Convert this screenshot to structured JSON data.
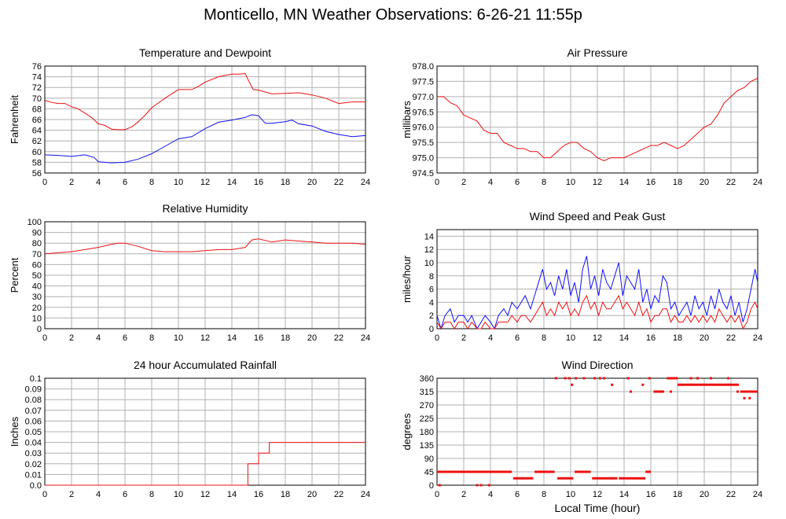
{
  "title": "Monticello, MN Weather Observations: 6-26-21 11:55p",
  "shared_xlabel": "Local Time (hour)",
  "colors": {
    "red": "#ee1111",
    "blue": "#1111ee",
    "grid": "#b0b0b0"
  },
  "chart_data": [
    {
      "type": "line",
      "title": "Temperature and Dewpoint",
      "ylabel": "Fahrenheit",
      "xlim": [
        0,
        24
      ],
      "ylim": [
        56,
        76
      ],
      "xticks": [
        0,
        2,
        4,
        6,
        8,
        10,
        12,
        14,
        16,
        18,
        20,
        22,
        24
      ],
      "yticks": [
        "56",
        "58",
        "60",
        "62",
        "64",
        "66",
        "68",
        "70",
        "72",
        "74",
        "76"
      ],
      "grid": true,
      "series": [
        {
          "color": "#ee1111",
          "x": [
            0,
            0.5,
            1,
            1.5,
            2,
            2.5,
            3,
            3.5,
            4,
            4.5,
            5,
            5.5,
            6,
            6.5,
            7,
            7.5,
            8,
            9,
            10,
            11,
            11.5,
            12,
            13,
            14,
            14.5,
            15,
            15.3,
            15.6,
            16,
            17,
            18,
            19,
            20,
            21,
            22,
            23,
            24
          ],
          "y": [
            69.6,
            69.2,
            69.0,
            69.0,
            68.4,
            68.0,
            67.2,
            66.4,
            65.2,
            64.9,
            64.2,
            64.1,
            64.1,
            64.6,
            65.6,
            66.8,
            68.2,
            70.0,
            71.6,
            71.6,
            72.2,
            73.0,
            74.0,
            74.5,
            74.5,
            74.6,
            73.0,
            71.6,
            71.5,
            70.8,
            70.9,
            71.0,
            70.6,
            70.0,
            69.0,
            69.3,
            69.3
          ]
        },
        {
          "color": "#1111ee",
          "x": [
            0,
            1,
            2,
            3,
            3.7,
            4,
            4.5,
            5,
            6,
            7,
            8,
            9,
            10,
            11,
            12,
            13,
            14,
            15,
            15.5,
            16,
            16.5,
            17,
            18,
            18.5,
            19,
            20,
            21,
            22,
            23,
            24
          ],
          "y": [
            59.4,
            59.3,
            59.1,
            59.4,
            58.9,
            58.1,
            58.0,
            57.9,
            58.0,
            58.6,
            59.6,
            61.0,
            62.4,
            62.8,
            64.3,
            65.5,
            65.9,
            66.4,
            66.9,
            66.7,
            65.3,
            65.3,
            65.6,
            65.9,
            65.2,
            64.8,
            63.8,
            63.2,
            62.8,
            63.0
          ]
        }
      ]
    },
    {
      "type": "line",
      "title": "Air Pressure",
      "ylabel": "millibars",
      "xlim": [
        0,
        24
      ],
      "ylim": [
        974.5,
        978.0
      ],
      "xticks": [
        0,
        2,
        4,
        6,
        8,
        10,
        12,
        14,
        16,
        18,
        20,
        22,
        24
      ],
      "yticks": [
        "974.5",
        "975.0",
        "975.5",
        "976.0",
        "976.5",
        "977.0",
        "977.5",
        "978.0"
      ],
      "grid": true,
      "series": [
        {
          "color": "#ee1111",
          "x": [
            0,
            0.5,
            1,
            1.5,
            2,
            2.5,
            3,
            3.5,
            4,
            4.5,
            5,
            5.5,
            6,
            6.5,
            7,
            7.5,
            8,
            8.5,
            9,
            9.5,
            10,
            10.5,
            11,
            11.5,
            12,
            12.5,
            13,
            13.5,
            14,
            14.5,
            15,
            15.5,
            16,
            16.5,
            17,
            17.5,
            18,
            18.5,
            19,
            19.5,
            20,
            20.5,
            21,
            21.5,
            22,
            22.5,
            23,
            23.5,
            24
          ],
          "y": [
            977.0,
            977.0,
            976.8,
            976.7,
            976.4,
            976.3,
            976.2,
            975.9,
            975.8,
            975.8,
            975.5,
            975.4,
            975.3,
            975.3,
            975.2,
            975.2,
            975.0,
            975.0,
            975.2,
            975.4,
            975.5,
            975.5,
            975.3,
            975.2,
            975.0,
            974.9,
            975.0,
            975.0,
            975.0,
            975.1,
            975.2,
            975.3,
            975.4,
            975.4,
            975.5,
            975.4,
            975.3,
            975.4,
            975.6,
            975.8,
            976.0,
            976.1,
            976.4,
            976.8,
            977.0,
            977.2,
            977.3,
            977.5,
            977.6
          ]
        }
      ]
    },
    {
      "type": "line",
      "title": "Relative Humidity",
      "ylabel": "Percent",
      "xlim": [
        0,
        24
      ],
      "ylim": [
        0,
        100
      ],
      "xticks": [
        0,
        2,
        4,
        6,
        8,
        10,
        12,
        14,
        16,
        18,
        20,
        22,
        24
      ],
      "yticks": [
        "0",
        "10",
        "20",
        "30",
        "40",
        "50",
        "60",
        "70",
        "80",
        "90",
        "100"
      ],
      "grid": true,
      "series": [
        {
          "color": "#ee1111",
          "x": [
            0,
            1,
            2,
            3,
            4,
            5,
            5.5,
            6,
            7,
            8,
            9,
            10,
            11,
            12,
            13,
            14,
            15,
            15.5,
            16,
            17,
            18,
            19,
            20,
            21,
            22,
            23,
            24
          ],
          "y": [
            70,
            71,
            72,
            74,
            76,
            79,
            80,
            80,
            77,
            73,
            72,
            72,
            72,
            73,
            74,
            74,
            76,
            83,
            84,
            81,
            83,
            82,
            81,
            80,
            80,
            80,
            79
          ]
        }
      ]
    },
    {
      "type": "line",
      "title": "Wind Speed and Peak Gust",
      "ylabel": "miles/hour",
      "xlim": [
        0,
        24
      ],
      "ylim": [
        0,
        15
      ],
      "xticks": [
        0,
        2,
        4,
        6,
        8,
        10,
        12,
        14,
        16,
        18,
        20,
        22,
        24
      ],
      "yticks": [
        "0",
        "2",
        "4",
        "6",
        "8",
        "10",
        "12",
        "14"
      ],
      "grid": true,
      "series": [
        {
          "color": "#1111ee",
          "x": [
            0,
            0.3,
            0.6,
            1,
            1.3,
            1.6,
            2,
            2.3,
            2.6,
            3,
            3.3,
            3.6,
            4,
            4.3,
            4.6,
            5,
            5.3,
            5.6,
            6,
            6.3,
            6.6,
            7,
            7.3,
            7.6,
            7.9,
            8.2,
            8.5,
            8.8,
            9.1,
            9.4,
            9.7,
            10,
            10.3,
            10.6,
            10.9,
            11.2,
            11.5,
            11.8,
            12.1,
            12.4,
            12.7,
            13,
            13.3,
            13.6,
            13.9,
            14.2,
            14.5,
            14.8,
            15.1,
            15.4,
            15.7,
            16,
            16.3,
            16.6,
            16.9,
            17.2,
            17.5,
            17.8,
            18.1,
            18.4,
            18.7,
            19,
            19.3,
            19.6,
            19.9,
            20.2,
            20.5,
            20.8,
            21.1,
            21.4,
            21.7,
            22,
            22.3,
            22.6,
            22.9,
            23.2,
            23.5,
            23.8,
            24
          ],
          "y": [
            2,
            0,
            2,
            3,
            1,
            2,
            2,
            1,
            2,
            0,
            1,
            2,
            1,
            0,
            2,
            3,
            2,
            4,
            3,
            4,
            5,
            3,
            5,
            7,
            9,
            6,
            7,
            5,
            8,
            6,
            9,
            5,
            7,
            4,
            9,
            11,
            6,
            8,
            5,
            9,
            7,
            6,
            8,
            10,
            5,
            8,
            7,
            6,
            9,
            4,
            6,
            3,
            5,
            4,
            8,
            7,
            3,
            4,
            2,
            3,
            4,
            2,
            5,
            3,
            4,
            2,
            5,
            3,
            6,
            4,
            3,
            5,
            2,
            4,
            1,
            3,
            6,
            9,
            7
          ]
        },
        {
          "color": "#ee1111",
          "x": [
            0,
            0.3,
            0.6,
            1,
            1.3,
            1.6,
            2,
            2.3,
            2.6,
            3,
            3.3,
            3.6,
            4,
            4.3,
            4.6,
            5,
            5.3,
            5.6,
            6,
            6.3,
            6.6,
            7,
            7.3,
            7.6,
            7.9,
            8.2,
            8.5,
            8.8,
            9.1,
            9.4,
            9.7,
            10,
            10.3,
            10.6,
            10.9,
            11.2,
            11.5,
            11.8,
            12.1,
            12.4,
            12.7,
            13,
            13.3,
            13.6,
            13.9,
            14.2,
            14.5,
            14.8,
            15.1,
            15.4,
            15.7,
            16,
            16.3,
            16.6,
            16.9,
            17.2,
            17.5,
            17.8,
            18.1,
            18.4,
            18.7,
            19,
            19.3,
            19.6,
            19.9,
            20.2,
            20.5,
            20.8,
            21.1,
            21.4,
            21.7,
            22,
            22.3,
            22.6,
            22.9,
            23.2,
            23.5,
            23.8,
            24
          ],
          "y": [
            1,
            0,
            1,
            1,
            0,
            1,
            1,
            0,
            1,
            0,
            0,
            1,
            0,
            0,
            1,
            1,
            1,
            2,
            1,
            2,
            2,
            1,
            2,
            3,
            4,
            2,
            3,
            2,
            4,
            3,
            4,
            2,
            3,
            2,
            4,
            5,
            3,
            4,
            2,
            4,
            3,
            3,
            4,
            5,
            3,
            4,
            3,
            2,
            4,
            2,
            3,
            1,
            2,
            2,
            3,
            3,
            1,
            2,
            1,
            1,
            2,
            1,
            2,
            1,
            2,
            1,
            2,
            1,
            3,
            2,
            1,
            2,
            1,
            2,
            0,
            1,
            3,
            4,
            3
          ]
        }
      ]
    },
    {
      "type": "line",
      "title": "24 hour Accumulated Rainfall",
      "ylabel": "Inches",
      "xlim": [
        0,
        24
      ],
      "ylim": [
        0,
        0.1
      ],
      "xticks": [
        0,
        2,
        4,
        6,
        8,
        10,
        12,
        14,
        16,
        18,
        20,
        22,
        24
      ],
      "yticks": [
        "0.0",
        "0.01",
        "0.02",
        "0.03",
        "0.04",
        "0.05",
        "0.06",
        "0.07",
        "0.08",
        "0.09",
        "0.1"
      ],
      "grid": true,
      "series": [
        {
          "color": "#ee1111",
          "x": [
            0,
            15.2,
            15.2,
            16.0,
            16.0,
            16.5,
            16.5,
            16.8,
            16.8,
            24
          ],
          "y": [
            0,
            0,
            0.02,
            0.02,
            0.03,
            0.03,
            0.03,
            0.03,
            0.04,
            0.04
          ]
        }
      ]
    },
    {
      "type": "scatter",
      "title": "Wind Direction",
      "ylabel": "degrees",
      "xlabel": "Local Time (hour)",
      "xlim": [
        0,
        24
      ],
      "ylim": [
        0,
        360
      ],
      "xticks": [
        0,
        2,
        4,
        6,
        8,
        10,
        12,
        14,
        16,
        18,
        20,
        22,
        24
      ],
      "yticks": [
        "0",
        "45",
        "90",
        "135",
        "180",
        "225",
        "270",
        "315",
        "360"
      ],
      "grid": true,
      "segments": [
        {
          "x0": 0,
          "x1": 5.6,
          "y": 45
        },
        {
          "x0": 5.7,
          "x1": 7.2,
          "y": 23
        },
        {
          "x0": 7.3,
          "x1": 8.8,
          "y": 45
        },
        {
          "x0": 9.0,
          "x1": 10.2,
          "y": 23
        },
        {
          "x0": 10.3,
          "x1": 11.5,
          "y": 45
        },
        {
          "x0": 11.6,
          "x1": 13.5,
          "y": 23
        },
        {
          "x0": 13.6,
          "x1": 15.6,
          "y": 23
        },
        {
          "x0": 15.6,
          "x1": 16.0,
          "y": 45
        },
        {
          "x0": 16.2,
          "x1": 17.0,
          "y": 315
        },
        {
          "x0": 17.2,
          "x1": 18.0,
          "y": 360
        },
        {
          "x0": 18.0,
          "x1": 20.0,
          "y": 338
        },
        {
          "x0": 20.0,
          "x1": 21.5,
          "y": 338
        },
        {
          "x0": 21.5,
          "x1": 22.6,
          "y": 338
        },
        {
          "x0": 22.7,
          "x1": 24.0,
          "y": 315
        }
      ],
      "points": [
        {
          "x": 0.2,
          "y": 0
        },
        {
          "x": 3.0,
          "y": 0
        },
        {
          "x": 3.3,
          "y": 0
        },
        {
          "x": 3.9,
          "y": 0
        },
        {
          "x": 8.9,
          "y": 360
        },
        {
          "x": 9.6,
          "y": 360
        },
        {
          "x": 9.9,
          "y": 360
        },
        {
          "x": 10.1,
          "y": 338
        },
        {
          "x": 10.4,
          "y": 360
        },
        {
          "x": 11.0,
          "y": 360
        },
        {
          "x": 11.8,
          "y": 360
        },
        {
          "x": 12.2,
          "y": 360
        },
        {
          "x": 12.5,
          "y": 360
        },
        {
          "x": 13.1,
          "y": 338
        },
        {
          "x": 14.3,
          "y": 360
        },
        {
          "x": 14.5,
          "y": 315
        },
        {
          "x": 15.4,
          "y": 338
        },
        {
          "x": 15.9,
          "y": 360
        },
        {
          "x": 17.5,
          "y": 315
        },
        {
          "x": 19.0,
          "y": 360
        },
        {
          "x": 19.5,
          "y": 360
        },
        {
          "x": 20.5,
          "y": 360
        },
        {
          "x": 21.8,
          "y": 360
        },
        {
          "x": 22.5,
          "y": 315
        },
        {
          "x": 23.0,
          "y": 293
        },
        {
          "x": 23.4,
          "y": 293
        }
      ]
    }
  ]
}
